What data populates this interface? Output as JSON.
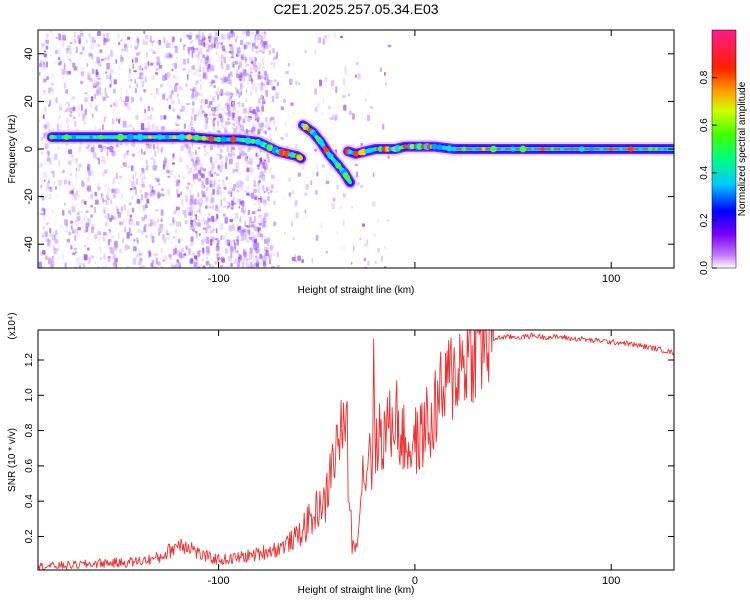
{
  "chart_data": [
    {
      "type": "heatmap",
      "title": "C2E1.2025.257.05.34.E03",
      "xlabel": "Height of straight line (km)",
      "ylabel": "Frequency (Hz)",
      "xlim": [
        -192,
        132
      ],
      "ylim": [
        -50,
        50
      ],
      "x_ticks": [
        -100,
        0,
        100
      ],
      "x_tick_labels": [
        "-100",
        "",
        "100"
      ],
      "y_ticks": [
        -40,
        -20,
        0,
        20,
        40
      ],
      "y_tick_labels": [
        "-40",
        "-20",
        "0",
        "20",
        "40"
      ],
      "grid": false,
      "colorbar": {
        "label": "Normalized spectral amplitude",
        "range": [
          0,
          1
        ],
        "ticks": [
          0.0,
          0.2,
          0.4,
          0.6,
          0.8
        ],
        "tick_labels": [
          "0.0",
          "0.2",
          "0.4",
          "0.6",
          "0.8"
        ],
        "colors": [
          "#ffffff",
          "#9b00ff",
          "#0000ff",
          "#00ffff",
          "#00ff00",
          "#ffff00",
          "#ff8000",
          "#ff0000",
          "#ff1493"
        ]
      },
      "traces": [
        {
          "name": "main_echo",
          "x": [
            -185,
            -170,
            -150,
            -130,
            -115,
            -100,
            -90,
            -80,
            -75,
            -70,
            -65,
            -60,
            -58
          ],
          "y": [
            5,
            5,
            5,
            5,
            5,
            4,
            4,
            3,
            1,
            -1,
            -2,
            -3,
            -4
          ]
        },
        {
          "name": "descending_echo",
          "x": [
            -57,
            -52,
            -48,
            -44,
            -40,
            -36,
            -33
          ],
          "y": [
            10,
            7,
            3,
            -2,
            -6,
            -10,
            -14
          ]
        },
        {
          "name": "trail",
          "x": [
            -34,
            -30,
            -25,
            -20,
            -15,
            -10,
            -5,
            0,
            5,
            10,
            20,
            40,
            60,
            80,
            100,
            120,
            132
          ],
          "y": [
            -1,
            -2,
            -1,
            0,
            0,
            0,
            1,
            1,
            1,
            1,
            0,
            0,
            0,
            0,
            0,
            0,
            0
          ]
        }
      ]
    },
    {
      "type": "line",
      "title": "",
      "xlabel": "Height of straight line (km)",
      "ylabel": "SNR (10 * v/v)",
      "scale_note": "(x10⁴)",
      "xlim": [
        -192,
        132
      ],
      "ylim": [
        0.01,
        1.37
      ],
      "x_ticks": [
        -100,
        0,
        100
      ],
      "x_tick_labels": [
        "-100",
        "0",
        "100"
      ],
      "y_ticks": [
        0.2,
        0.4,
        0.6,
        0.8,
        1.0,
        1.2
      ],
      "y_tick_labels": [
        "0.2",
        "0.4",
        "0.6",
        "0.8",
        "1.0",
        "1.2"
      ],
      "grid": false,
      "line_color": "#ee3030",
      "series": [
        {
          "x": [
            -192,
            -180,
            -170,
            -160,
            -150,
            -140,
            -130,
            -125,
            -120,
            -115,
            -110,
            -105,
            -100,
            -95,
            -90,
            -85,
            -80,
            -75,
            -70,
            -65,
            -60,
            -56,
            -52,
            -48,
            -46,
            -44,
            -42,
            -40,
            -38,
            -36,
            -35,
            -34,
            -33,
            -32,
            -31,
            -30,
            -29,
            -28,
            -27,
            -26,
            -25,
            -24,
            -23,
            -22,
            -21,
            -20,
            -19,
            -18,
            -16,
            -14,
            -12,
            -10,
            -8,
            -6,
            -4,
            -2,
            0,
            2,
            4,
            6,
            8,
            10,
            12,
            14,
            16,
            18,
            20,
            22,
            25,
            28,
            32,
            36,
            40,
            45,
            50,
            55,
            60,
            65,
            70,
            75,
            80,
            85,
            90,
            95,
            100,
            105,
            110,
            115,
            120,
            125,
            132
          ],
          "y": [
            0.03,
            0.035,
            0.04,
            0.05,
            0.05,
            0.06,
            0.08,
            0.12,
            0.16,
            0.15,
            0.1,
            0.08,
            0.07,
            0.07,
            0.08,
            0.09,
            0.1,
            0.12,
            0.13,
            0.16,
            0.2,
            0.26,
            0.3,
            0.4,
            0.36,
            0.5,
            0.62,
            0.7,
            0.8,
            0.75,
            1.0,
            0.55,
            0.35,
            0.18,
            0.12,
            0.15,
            0.3,
            0.36,
            0.52,
            0.6,
            0.55,
            0.62,
            0.78,
            0.58,
            1.12,
            0.72,
            0.66,
            0.82,
            0.75,
            0.85,
            0.8,
            0.95,
            0.78,
            0.75,
            0.72,
            0.7,
            0.75,
            0.72,
            0.8,
            0.85,
            0.78,
            0.92,
            0.98,
            1.0,
            1.05,
            1.1,
            1.12,
            1.16,
            1.2,
            1.25,
            1.29,
            1.3,
            1.32,
            1.33,
            1.33,
            1.33,
            1.34,
            1.33,
            1.33,
            1.33,
            1.32,
            1.32,
            1.31,
            1.31,
            1.3,
            1.3,
            1.29,
            1.28,
            1.27,
            1.26,
            1.24
          ]
        }
      ]
    }
  ]
}
